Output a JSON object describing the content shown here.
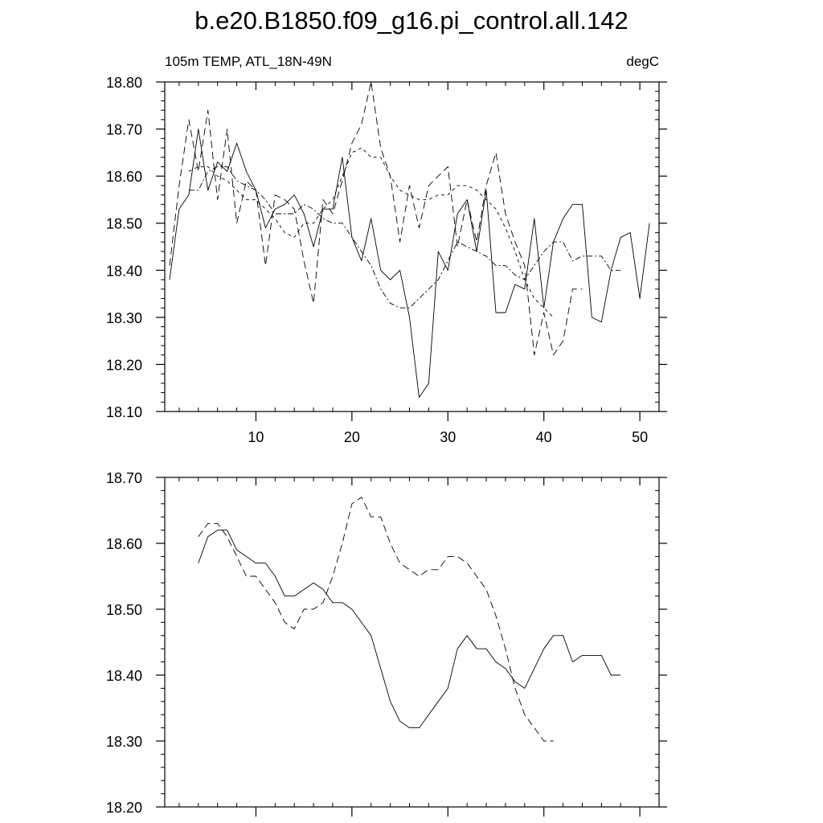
{
  "chart_data": [
    {
      "type": "line",
      "title": "b.e20.B1850.f09_g16.pi_control.all.142",
      "left_subtitle": "105m TEMP, ATL_18N-49N",
      "right_subtitle": "degC",
      "xlim": [
        0.5,
        52
      ],
      "ylim": [
        18.1,
        18.8
      ],
      "x_ticks": [
        10,
        20,
        30,
        40,
        50
      ],
      "x_tick_labels": [
        "10",
        "20",
        "30",
        "40",
        "50"
      ],
      "y_ticks": [
        18.1,
        18.2,
        18.3,
        18.4,
        18.5,
        18.6,
        18.7,
        18.8
      ],
      "y_tick_labels": [
        "18.10",
        "18.20",
        "18.30",
        "18.40",
        "18.50",
        "18.60",
        "18.70",
        "18.80"
      ],
      "series": [
        {
          "style": "solid",
          "x": [
            1,
            2,
            3,
            4,
            5,
            6,
            7,
            8,
            9,
            10,
            11,
            12,
            13,
            14,
            15,
            16,
            17,
            18,
            19,
            20,
            21,
            22,
            23,
            24,
            25,
            26,
            27,
            28,
            29,
            30,
            31,
            32,
            33,
            34,
            35,
            36,
            37,
            38,
            39,
            40,
            41,
            42,
            43,
            44,
            45,
            46,
            47,
            48,
            49,
            50,
            51
          ],
          "values": [
            18.38,
            18.53,
            18.56,
            18.7,
            18.57,
            18.63,
            18.61,
            18.67,
            18.61,
            18.57,
            18.49,
            18.53,
            18.54,
            18.56,
            18.52,
            18.45,
            18.53,
            18.53,
            18.64,
            18.47,
            18.42,
            18.51,
            18.4,
            18.38,
            18.4,
            18.3,
            18.13,
            18.16,
            18.44,
            18.4,
            18.52,
            18.55,
            18.44,
            18.57,
            18.31,
            18.31,
            18.37,
            18.36,
            18.51,
            18.32,
            18.46,
            18.51,
            18.54,
            18.54,
            18.3,
            18.29,
            18.4,
            18.47,
            18.48,
            18.34,
            18.5
          ]
        },
        {
          "style": "long-dash",
          "x": [
            1,
            2,
            3,
            4,
            5,
            6,
            7,
            8,
            9,
            10,
            11,
            12,
            13,
            14,
            15,
            16,
            17,
            18,
            19,
            20,
            21,
            22,
            23,
            24,
            25,
            26,
            27,
            28,
            29,
            30,
            31,
            32,
            33,
            34,
            35,
            36,
            37,
            38,
            39,
            40,
            41,
            42,
            43,
            44
          ],
          "values": [
            18.41,
            18.58,
            18.72,
            18.61,
            18.74,
            18.55,
            18.7,
            18.5,
            18.59,
            18.57,
            18.41,
            18.56,
            18.55,
            18.53,
            18.42,
            18.33,
            18.55,
            18.52,
            18.59,
            18.67,
            18.71,
            18.8,
            18.66,
            18.6,
            18.46,
            18.58,
            18.49,
            18.58,
            18.6,
            18.62,
            18.45,
            18.55,
            18.46,
            18.58,
            18.65,
            18.52,
            18.46,
            18.41,
            18.22,
            18.31,
            18.22,
            18.25,
            18.36,
            18.36
          ]
        },
        {
          "style": "short-dash",
          "x": [
            3,
            4,
            5,
            6,
            7,
            8,
            9,
            10,
            11,
            12,
            13,
            14,
            15,
            16,
            17,
            18,
            19,
            20,
            21,
            22,
            23,
            24,
            25,
            26,
            27,
            28,
            29,
            30,
            31,
            32,
            33,
            34,
            35,
            36,
            37,
            38,
            39,
            40,
            41
          ],
          "values": [
            18.61,
            18.62,
            18.62,
            18.6,
            18.59,
            18.57,
            18.55,
            18.55,
            18.53,
            18.51,
            18.48,
            18.47,
            18.5,
            18.5,
            18.53,
            18.55,
            18.6,
            18.65,
            18.66,
            18.64,
            18.64,
            18.6,
            18.57,
            18.56,
            18.55,
            18.55,
            18.56,
            18.56,
            18.58,
            18.58,
            18.57,
            18.55,
            18.53,
            18.49,
            18.44,
            18.38,
            18.34,
            18.32,
            18.3
          ]
        },
        {
          "style": "dash-dot",
          "x": [
            3,
            4,
            5,
            6,
            7,
            8,
            9,
            10,
            11,
            12,
            13,
            14,
            15,
            16,
            17,
            18,
            19,
            20,
            21,
            22,
            23,
            24,
            25,
            26,
            27,
            28,
            29,
            30,
            31,
            32,
            33,
            34,
            35,
            36,
            37,
            38,
            39,
            40,
            41,
            42,
            43,
            44,
            45,
            46,
            47,
            48
          ],
          "values": [
            18.57,
            18.57,
            18.61,
            18.62,
            18.62,
            18.59,
            18.58,
            18.57,
            18.55,
            18.52,
            18.52,
            18.52,
            18.54,
            18.53,
            18.51,
            18.5,
            18.5,
            18.47,
            18.44,
            18.41,
            18.36,
            18.33,
            18.32,
            18.32,
            18.34,
            18.36,
            18.38,
            18.42,
            18.46,
            18.45,
            18.44,
            18.43,
            18.41,
            18.41,
            18.39,
            18.38,
            18.41,
            18.44,
            18.46,
            18.46,
            18.42,
            18.43,
            18.43,
            18.43,
            18.4,
            18.4
          ]
        }
      ]
    },
    {
      "type": "line",
      "xlim": [
        0.5,
        52
      ],
      "ylim": [
        18.2,
        18.7
      ],
      "x_ticks": [
        10,
        20,
        30,
        40,
        50
      ],
      "y_ticks": [
        18.2,
        18.3,
        18.4,
        18.5,
        18.6,
        18.7
      ],
      "y_tick_labels": [
        "18.20",
        "18.30",
        "18.40",
        "18.50",
        "18.60",
        "18.70"
      ],
      "series": [
        {
          "style": "solid",
          "x": [
            4,
            5,
            6,
            7,
            8,
            9,
            10,
            11,
            12,
            13,
            14,
            15,
            16,
            17,
            18,
            19,
            20,
            21,
            22,
            23,
            24,
            25,
            26,
            27,
            28,
            29,
            30,
            31,
            32,
            33,
            34,
            35,
            36,
            37,
            38,
            39,
            40,
            41,
            42,
            43,
            44,
            45,
            46,
            47,
            48
          ],
          "values": [
            18.57,
            18.61,
            18.62,
            18.62,
            18.59,
            18.58,
            18.57,
            18.57,
            18.55,
            18.52,
            18.52,
            18.53,
            18.54,
            18.53,
            18.51,
            18.51,
            18.5,
            18.48,
            18.46,
            18.41,
            18.36,
            18.33,
            18.32,
            18.32,
            18.34,
            18.36,
            18.38,
            18.44,
            18.46,
            18.44,
            18.44,
            18.42,
            18.41,
            18.39,
            18.38,
            18.41,
            18.44,
            18.46,
            18.46,
            18.42,
            18.43,
            18.43,
            18.43,
            18.4,
            18.4
          ]
        },
        {
          "style": "long-dash",
          "x": [
            4,
            5,
            6,
            7,
            8,
            9,
            10,
            11,
            12,
            13,
            14,
            15,
            16,
            17,
            18,
            19,
            20,
            21,
            22,
            23,
            24,
            25,
            26,
            27,
            28,
            29,
            30,
            31,
            32,
            33,
            34,
            35,
            36,
            37,
            38,
            39,
            40,
            41
          ],
          "values": [
            18.61,
            18.63,
            18.63,
            18.61,
            18.58,
            18.55,
            18.55,
            18.53,
            18.51,
            18.48,
            18.47,
            18.5,
            18.5,
            18.51,
            18.55,
            18.6,
            18.66,
            18.67,
            18.64,
            18.64,
            18.6,
            18.57,
            18.56,
            18.55,
            18.56,
            18.56,
            18.58,
            18.58,
            18.57,
            18.55,
            18.53,
            18.49,
            18.44,
            18.38,
            18.34,
            18.32,
            18.3,
            18.3
          ]
        }
      ]
    }
  ]
}
